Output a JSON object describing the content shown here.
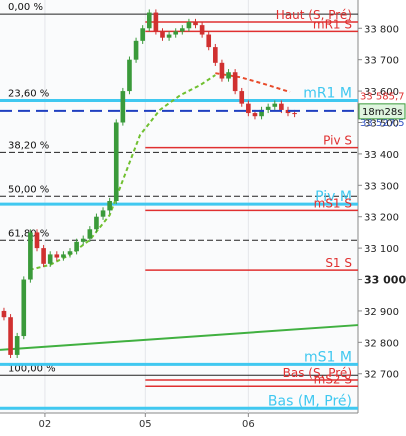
{
  "chart_data": {
    "type": "candlestick",
    "open": [
      32900,
      32880,
      32760,
      32820,
      33000,
      33150,
      33100,
      33050,
      33080,
      33070,
      33080,
      33090,
      33120,
      33130,
      33160,
      33200,
      33220,
      33250,
      33500,
      33600,
      33700,
      33760,
      33800,
      33850,
      33790,
      33770,
      33780,
      33790,
      33800,
      33820,
      33810,
      33780,
      33740,
      33690,
      33640,
      33660,
      33600,
      33560,
      33530,
      33520,
      33540,
      33550,
      33560,
      33540,
      33530
    ],
    "high": [
      32910,
      32890,
      32830,
      33010,
      33160,
      33160,
      33110,
      33090,
      33090,
      33090,
      33100,
      33130,
      33140,
      33170,
      33210,
      33230,
      33260,
      33510,
      33610,
      33710,
      33770,
      33810,
      33860,
      33860,
      33800,
      33790,
      33800,
      33810,
      33830,
      33830,
      33820,
      33790,
      33750,
      33700,
      33670,
      33670,
      33610,
      33570,
      33540,
      33550,
      33560,
      33570,
      33570,
      33550,
      33540
    ],
    "low": [
      32870,
      32750,
      32750,
      32810,
      32990,
      33090,
      33040,
      33040,
      33060,
      33060,
      33070,
      33080,
      33110,
      33120,
      33150,
      33190,
      33210,
      33240,
      33490,
      33590,
      33690,
      33750,
      33790,
      33780,
      33760,
      33760,
      33770,
      33780,
      33790,
      33800,
      33770,
      33730,
      33680,
      33630,
      33630,
      33590,
      33550,
      33520,
      33510,
      33510,
      33530,
      33540,
      33530,
      33520,
      33517
    ],
    "close": [
      32880,
      32760,
      32820,
      33000,
      33150,
      33100,
      33050,
      33080,
      33070,
      33080,
      33090,
      33120,
      33130,
      33160,
      33200,
      33220,
      33250,
      33500,
      33600,
      33700,
      33760,
      33800,
      33850,
      33790,
      33770,
      33780,
      33790,
      33800,
      33820,
      33810,
      33780,
      33740,
      33690,
      33640,
      33660,
      33600,
      33560,
      33530,
      33520,
      33540,
      33550,
      33560,
      33540,
      33530,
      33527.5
    ],
    "up_color": "#3a9a3a",
    "down_color": "#d03030",
    "xlim": [
      -0.6,
      53.6
    ],
    "xticks": [
      {
        "value": 6.2,
        "label": "02"
      },
      {
        "value": 21.4,
        "label": "05"
      },
      {
        "value": 37,
        "label": "06"
      }
    ],
    "ylim": [
      32575,
      33890
    ],
    "yticks": [
      {
        "value": 33800,
        "label": "33 800"
      },
      {
        "value": 33700,
        "label": "33 700"
      },
      {
        "value": 33600,
        "label": "33 600"
      },
      {
        "value": 33500,
        "label": "33 500"
      },
      {
        "value": 33400,
        "label": "33 400"
      },
      {
        "value": 33300,
        "label": "33 300"
      },
      {
        "value": 33200,
        "label": "33 200"
      },
      {
        "value": 33100,
        "label": "33 100"
      },
      {
        "value": 33000,
        "label": "33 000"
      },
      {
        "value": 32900,
        "label": "32 900"
      },
      {
        "value": 32800,
        "label": "32 800"
      },
      {
        "value": 32700,
        "label": "32 700"
      }
    ],
    "bold_tick": 33000,
    "fib_levels": [
      {
        "label": "0,00 %",
        "value": 33845
      },
      {
        "label": "23,60 %",
        "value": 33570
      },
      {
        "label": "38,20 %",
        "value": 33405
      },
      {
        "label": "50,00 %",
        "value": 33265
      },
      {
        "label": "61,80 %",
        "value": 33125
      },
      {
        "label": "100,00 %",
        "value": 32695
      }
    ],
    "levels": [
      {
        "name": "Haut (S, Pré)",
        "value": 33820,
        "color": "#e03030"
      },
      {
        "name": "mR1 S",
        "value": 33790,
        "color": "#e03030"
      },
      {
        "name": "mR1 M",
        "value": 33570,
        "color": "#40c8f0"
      },
      {
        "name": "Piv S",
        "value": 33420,
        "color": "#e03030"
      },
      {
        "name": "Piv M",
        "value": 33240,
        "color": "#40c8f0"
      },
      {
        "name": "mS1 S",
        "value": 33220,
        "color": "#e03030"
      },
      {
        "name": "S1 S",
        "value": 33030,
        "color": "#e03030"
      },
      {
        "name": "mS1 M",
        "value": 32730,
        "color": "#40c8f0"
      },
      {
        "name": "Bas (S, Pré)",
        "value": 32680,
        "color": "#e03030"
      },
      {
        "name": "mS2 S",
        "value": 32660,
        "color": "#e03030"
      },
      {
        "name": "Bas (M, Pré)",
        "value": 32590,
        "color": "#40c8f0"
      }
    ],
    "series": [
      {
        "color": "#70c030",
        "x": [
          3.9,
          7,
          10,
          13,
          16,
          18.3,
          20.6,
          23.6,
          26.7,
          29.7,
          32
        ],
        "values": [
          33031,
          33047,
          33079,
          33126,
          33205,
          33333,
          33460,
          33540,
          33587,
          33619,
          33651
        ]
      },
      {
        "color": "#e84a2a",
        "x": [
          32,
          35.8,
          39.5,
          43.3
        ],
        "values": [
          33657,
          33644,
          33622,
          33597
        ]
      },
      {
        "color": "#40b040",
        "x": [
          -0.6,
          53.6
        ],
        "values": [
          32776,
          32855
        ]
      }
    ],
    "price_labels": [
      {
        "value": 33585.7,
        "label": "33 585,7",
        "color": "#e03030"
      },
      {
        "value": 33527.5,
        "label": "33 527,5",
        "color": "#3050c0"
      }
    ],
    "timer": "18m28s"
  }
}
